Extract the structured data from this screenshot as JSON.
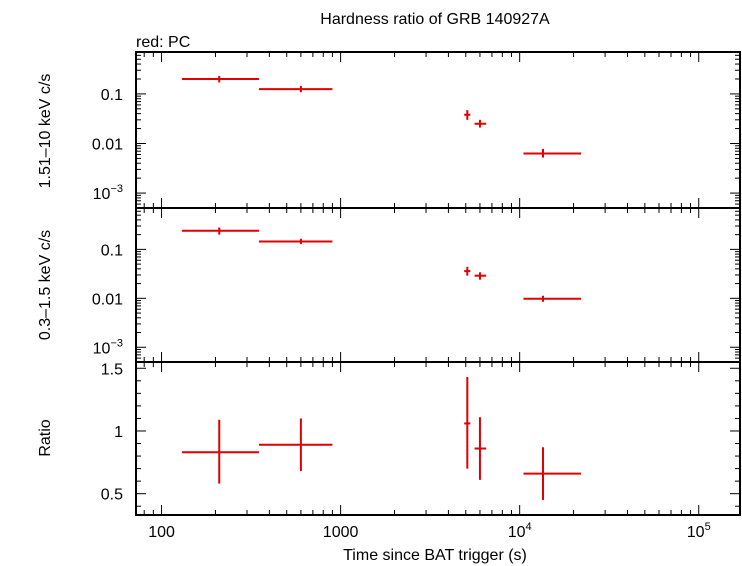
{
  "title": "Hardness ratio of GRB 140927A",
  "legend_note": "red: PC",
  "xlabel": "Time since BAT trigger (s)",
  "x_tick_labels": [
    {
      "value": 100,
      "text": "100"
    },
    {
      "value": 1000,
      "text": "1000"
    },
    {
      "value": 10000,
      "base": "10",
      "exp": "4"
    },
    {
      "value": 100000,
      "base": "10",
      "exp": "5"
    }
  ],
  "series_color": "#e00000",
  "chart_data": [
    {
      "type": "scatter",
      "panel": "hard",
      "ylabel": "1.51–10 keV c/s",
      "xscale": "log",
      "yscale": "log",
      "xlim": [
        72,
        170000
      ],
      "ylim": [
        0.0005,
        0.7
      ],
      "ytick_labels": [
        {
          "value": 0.1,
          "text": "0.1"
        },
        {
          "value": 0.01,
          "text": "0.01"
        },
        {
          "value": 0.001,
          "base": "10",
          "exp": "−3"
        }
      ],
      "points": [
        {
          "x": 210,
          "xerr": [
            130,
            350
          ],
          "y": 0.2,
          "yerr": [
            0.17,
            0.23
          ]
        },
        {
          "x": 600,
          "xerr": [
            350,
            900
          ],
          "y": 0.125,
          "yerr": [
            0.108,
            0.145
          ]
        },
        {
          "x": 5100,
          "xerr": [
            4900,
            5300
          ],
          "y": 0.038,
          "yerr": [
            0.03,
            0.047
          ]
        },
        {
          "x": 6000,
          "xerr": [
            5600,
            6500
          ],
          "y": 0.025,
          "yerr": [
            0.021,
            0.03
          ]
        },
        {
          "x": 13500,
          "xerr": [
            10500,
            22000
          ],
          "y": 0.0063,
          "yerr": [
            0.0052,
            0.0078
          ]
        }
      ]
    },
    {
      "type": "scatter",
      "panel": "soft",
      "ylabel": "0.3–1.5 keV c/s",
      "xscale": "log",
      "yscale": "log",
      "xlim": [
        72,
        170000
      ],
      "ylim": [
        0.0005,
        0.7
      ],
      "ytick_labels": [
        {
          "value": 0.1,
          "text": "0.1"
        },
        {
          "value": 0.01,
          "text": "0.01"
        },
        {
          "value": 0.001,
          "base": "10",
          "exp": "−3"
        }
      ],
      "points": [
        {
          "x": 210,
          "xerr": [
            130,
            350
          ],
          "y": 0.24,
          "yerr": [
            0.2,
            0.28
          ]
        },
        {
          "x": 600,
          "xerr": [
            350,
            900
          ],
          "y": 0.145,
          "yerr": [
            0.128,
            0.165
          ]
        },
        {
          "x": 5100,
          "xerr": [
            4900,
            5300
          ],
          "y": 0.036,
          "yerr": [
            0.029,
            0.044
          ]
        },
        {
          "x": 6000,
          "xerr": [
            5600,
            6500
          ],
          "y": 0.029,
          "yerr": [
            0.024,
            0.034
          ]
        },
        {
          "x": 13500,
          "xerr": [
            10500,
            22000
          ],
          "y": 0.0098,
          "yerr": [
            0.0085,
            0.0113
          ]
        }
      ]
    },
    {
      "type": "scatter",
      "panel": "ratio",
      "ylabel": "Ratio",
      "xscale": "log",
      "yscale": "linear",
      "xlim": [
        72,
        170000
      ],
      "ylim": [
        0.33,
        1.55
      ],
      "ytick_labels": [
        {
          "value": 1.5,
          "text": "1.5"
        },
        {
          "value": 1,
          "text": "1"
        },
        {
          "value": 0.5,
          "text": "0.5"
        }
      ],
      "points": [
        {
          "x": 210,
          "xerr": [
            130,
            350
          ],
          "y": 0.83,
          "yerr": [
            0.58,
            1.09
          ]
        },
        {
          "x": 600,
          "xerr": [
            350,
            900
          ],
          "y": 0.89,
          "yerr": [
            0.68,
            1.1
          ]
        },
        {
          "x": 5100,
          "xerr": [
            4900,
            5300
          ],
          "y": 1.06,
          "yerr": [
            0.7,
            1.43
          ]
        },
        {
          "x": 6000,
          "xerr": [
            5600,
            6500
          ],
          "y": 0.86,
          "yerr": [
            0.61,
            1.11
          ]
        },
        {
          "x": 13500,
          "xerr": [
            10500,
            22000
          ],
          "y": 0.66,
          "yerr": [
            0.45,
            0.87
          ]
        }
      ]
    }
  ]
}
